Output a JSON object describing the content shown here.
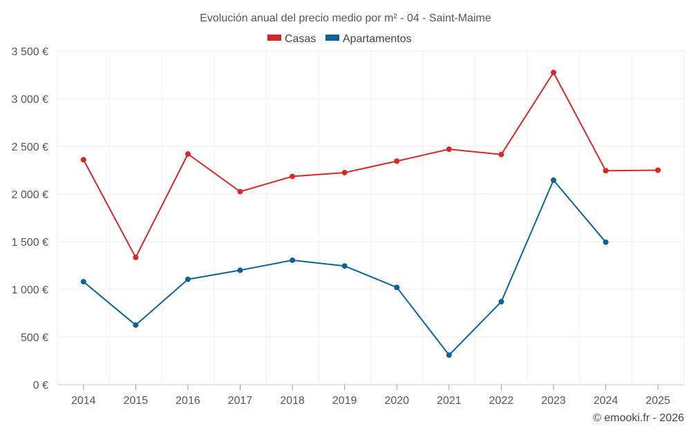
{
  "chart_data": {
    "type": "line",
    "title": "Evolución anual del precio medio por m² - 04 - Saint-Maime",
    "categories": [
      "2014",
      "2015",
      "2016",
      "2017",
      "2018",
      "2019",
      "2020",
      "2021",
      "2022",
      "2023",
      "2024",
      "2025"
    ],
    "series": [
      {
        "name": "Casas",
        "color": "#d62728",
        "values": [
          2360,
          1335,
          2420,
          2025,
          2185,
          2225,
          2345,
          2470,
          2415,
          3275,
          2245,
          2250
        ]
      },
      {
        "name": "Apartamentos",
        "color": "#0a6396",
        "values": [
          1080,
          625,
          1105,
          1200,
          1305,
          1245,
          1020,
          310,
          870,
          2145,
          1495,
          null
        ]
      }
    ],
    "ylim": [
      0,
      3500
    ],
    "yticks": [
      0,
      500,
      1000,
      1500,
      2000,
      2500,
      3000,
      3500
    ],
    "ytick_labels": [
      "0 €",
      "500 €",
      "1 000 €",
      "1 500 €",
      "2 000 €",
      "2 500 €",
      "3 000 €",
      "3 500 €"
    ],
    "xlabel": "",
    "ylabel": "",
    "grid": true,
    "legend_position": "top-center"
  },
  "credit": "© emooki.fr - 2026"
}
